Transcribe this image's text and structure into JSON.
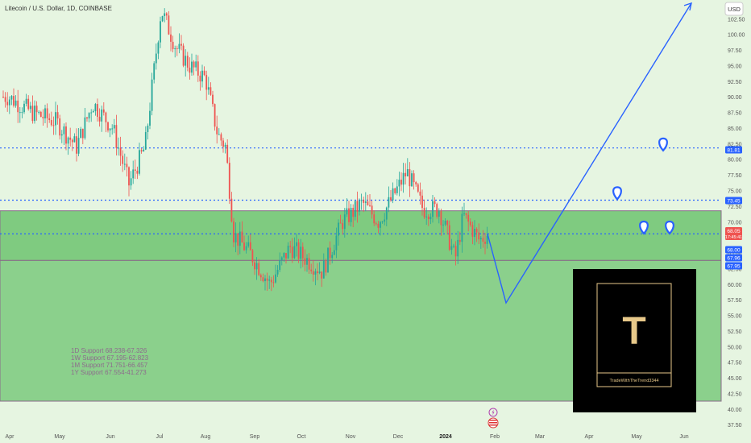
{
  "header": {
    "title": "Litecoin / U.S. Dollar, 1D, COINBASE",
    "currency": "USD"
  },
  "colors": {
    "background": "#e6f5e1",
    "zone_fill": "#6cc36f",
    "zone_border": "#8a6d8a",
    "up_candle": "#26a69a",
    "down_candle": "#ef5350",
    "projection": "#2962ff",
    "level_line": "#2962ff",
    "brand_box": "#000000",
    "brand_gold": "#e8c98a"
  },
  "chart_data": {
    "type": "candlestick",
    "x_axis_labels": [
      "Apr",
      "May",
      "Jun",
      "Jul",
      "Aug",
      "Sep",
      "Oct",
      "Nov",
      "Dec",
      "2024",
      "Feb",
      "Mar",
      "Apr",
      "May",
      "Jun"
    ],
    "y_ticks": [
      "102.50",
      "100.00",
      "97.50",
      "95.00",
      "92.50",
      "90.00",
      "87.50",
      "85.00",
      "82.50",
      "80.00",
      "77.50",
      "75.00",
      "72.50",
      "70.00",
      "67.50",
      "65.00",
      "62.50",
      "60.00",
      "57.50",
      "55.00",
      "52.50",
      "50.00",
      "47.50",
      "45.00",
      "42.50",
      "40.00",
      "37.50"
    ],
    "ylim": [
      36.5,
      105.5
    ],
    "price_path": [
      [
        "Apr",
        90.0
      ],
      [
        "Apr",
        87.5
      ],
      [
        "May",
        86.0
      ],
      [
        "May",
        82.0
      ],
      [
        "Jun",
        89.0
      ],
      [
        "Jun",
        85.0
      ],
      [
        "Jun",
        76.0
      ],
      [
        "Jun",
        82.0
      ],
      [
        "Jul",
        104.0
      ],
      [
        "Jul",
        98.0
      ],
      [
        "Jul",
        95.0
      ],
      [
        "Aug",
        93.0
      ],
      [
        "Aug",
        84.0
      ],
      [
        "Aug",
        82.0
      ],
      [
        "Aug",
        68.0
      ],
      [
        "Sep",
        65.0
      ],
      [
        "Sep",
        60.0
      ],
      [
        "Oct",
        66.0
      ],
      [
        "Oct",
        62.0
      ],
      [
        "Nov",
        70.0
      ],
      [
        "Nov",
        73.0
      ],
      [
        "Dec",
        70.0
      ],
      [
        "Dec",
        78.0
      ],
      [
        "Dec",
        72.0
      ],
      [
        "2024",
        72.0
      ],
      [
        "2024",
        64.0
      ],
      [
        "2024",
        71.0
      ],
      [
        "Feb",
        67.0
      ],
      [
        "Feb",
        68.05
      ]
    ],
    "horizontal_levels": [
      {
        "price": 81.81,
        "label": "81.81",
        "style": "dotted"
      },
      {
        "price": 73.45,
        "label": "73.45",
        "style": "dotted"
      },
      {
        "price": 68.05,
        "label": "68.05",
        "style": "dotted"
      }
    ],
    "zones": [
      {
        "top": 71.75,
        "bottom": 63.8
      },
      {
        "top": 63.8,
        "bottom": 41.27
      }
    ],
    "projection_path": [
      [
        "Feb",
        68.05
      ],
      [
        "Feb",
        57.0
      ],
      [
        "Jun",
        105.0
      ]
    ],
    "markers": [
      {
        "x": "Apr",
        "price": 74.5
      },
      {
        "x": "May",
        "price": 69.0
      },
      {
        "x": "May",
        "price": 69.0
      },
      {
        "x": "May",
        "price": 82.3
      }
    ],
    "price_tags": [
      {
        "label": "68.05",
        "sub": "17:45:41",
        "color": "#ef5350"
      },
      {
        "label": "68.00",
        "color": "#2962ff"
      },
      {
        "label": "67.96",
        "color": "#2962ff"
      },
      {
        "label": "67.95",
        "color": "#2962ff"
      },
      {
        "label": "81.81",
        "color": "#2962ff"
      },
      {
        "label": "73.45",
        "color": "#2962ff"
      }
    ]
  },
  "support_notes": [
    "1D Support 68.238-67.326",
    "1W Support 67.195-62.823",
    "1M Support 71.751-66.457",
    "1Y Support 67.554-41.273"
  ],
  "brand": {
    "letter": "T",
    "handle": "TradeWithTheTrend3344"
  }
}
